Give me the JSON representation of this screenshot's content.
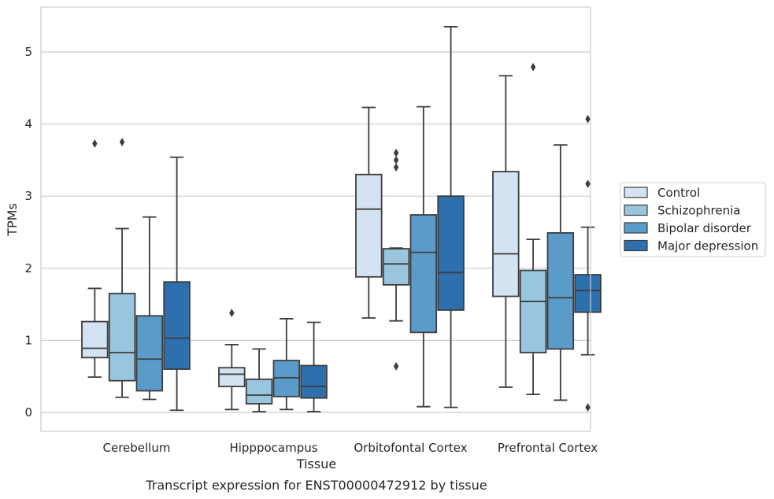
{
  "chart_data": {
    "type": "boxplot",
    "title": "",
    "caption": "Transcript expression for ENST00000472912 by tissue",
    "xlabel": "Tissue",
    "ylabel": "TPMs",
    "ylim": [
      -0.25,
      5.63
    ],
    "yticks": [
      0,
      1,
      2,
      3,
      4,
      5
    ],
    "grid": "horizontal",
    "legend_position": "right",
    "categories": [
      "Cerebellum",
      "Hipppocampus",
      "Orbitofontal Cortex",
      "Prefrontal Cortex"
    ],
    "series": [
      {
        "name": "Control",
        "color": "#d3e3f2",
        "boxes": [
          {
            "whislo": 0.49,
            "q1": 0.76,
            "med": 0.89,
            "q3": 1.26,
            "whishi": 1.72,
            "fliers": [
              3.73
            ]
          },
          {
            "whislo": 0.04,
            "q1": 0.36,
            "med": 0.53,
            "q3": 0.62,
            "whishi": 0.94,
            "fliers": [
              1.38
            ]
          },
          {
            "whislo": 1.31,
            "q1": 1.88,
            "med": 2.82,
            "q3": 3.3,
            "whishi": 4.23,
            "fliers": []
          },
          {
            "whislo": 0.35,
            "q1": 1.61,
            "med": 2.2,
            "q3": 3.34,
            "whishi": 4.67,
            "fliers": []
          }
        ]
      },
      {
        "name": "Schizophrenia",
        "color": "#9ac5de",
        "boxes": [
          {
            "whislo": 0.21,
            "q1": 0.44,
            "med": 0.83,
            "q3": 1.65,
            "whishi": 2.55,
            "fliers": [
              3.75
            ]
          },
          {
            "whislo": 0.01,
            "q1": 0.12,
            "med": 0.24,
            "q3": 0.46,
            "whishi": 0.88,
            "fliers": []
          },
          {
            "whislo": 1.27,
            "q1": 1.77,
            "med": 2.06,
            "q3": 2.27,
            "whishi": 2.28,
            "fliers": [
              3.6,
              3.5,
              3.4,
              0.64
            ]
          },
          {
            "whislo": 0.25,
            "q1": 0.83,
            "med": 1.54,
            "q3": 1.97,
            "whishi": 2.4,
            "fliers": [
              4.79
            ]
          }
        ]
      },
      {
        "name": "Bipolar disorder",
        "color": "#5a9bc9",
        "boxes": [
          {
            "whislo": 0.18,
            "q1": 0.3,
            "med": 0.74,
            "q3": 1.34,
            "whishi": 2.71,
            "fliers": []
          },
          {
            "whislo": 0.04,
            "q1": 0.22,
            "med": 0.48,
            "q3": 0.72,
            "whishi": 1.3,
            "fliers": []
          },
          {
            "whislo": 0.08,
            "q1": 1.11,
            "med": 2.22,
            "q3": 2.74,
            "whishi": 4.24,
            "fliers": []
          },
          {
            "whislo": 0.17,
            "q1": 0.88,
            "med": 1.59,
            "q3": 2.49,
            "whishi": 3.71,
            "fliers": []
          }
        ]
      },
      {
        "name": "Major depression",
        "color": "#2e6fae",
        "boxes": [
          {
            "whislo": 0.03,
            "q1": 0.6,
            "med": 1.03,
            "q3": 1.81,
            "whishi": 3.54,
            "fliers": []
          },
          {
            "whislo": 0.01,
            "q1": 0.2,
            "med": 0.36,
            "q3": 0.65,
            "whishi": 1.25,
            "fliers": []
          },
          {
            "whislo": 0.07,
            "q1": 1.42,
            "med": 1.94,
            "q3": 3.0,
            "whishi": 5.35,
            "fliers": []
          },
          {
            "whislo": 0.8,
            "q1": 1.39,
            "med": 1.69,
            "q3": 1.91,
            "whishi": 2.57,
            "fliers": [
              4.07,
              3.17,
              0.07
            ]
          }
        ]
      }
    ]
  }
}
